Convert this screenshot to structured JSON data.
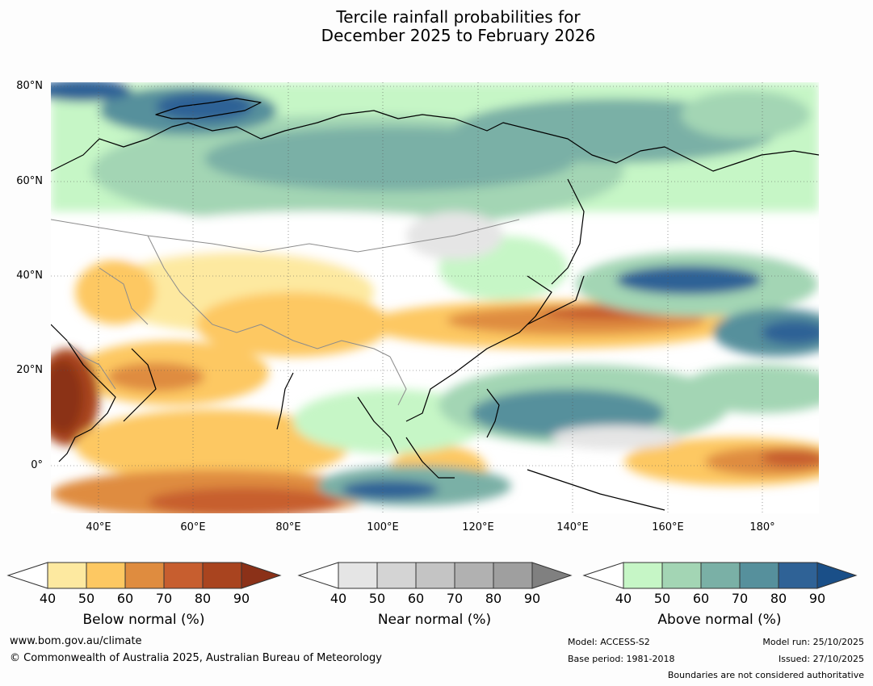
{
  "title": {
    "line1": "Tercile rainfall probabilities for",
    "line2": "December 2025 to February 2026"
  },
  "map": {
    "lat_labels": [
      "80°N",
      "60°N",
      "40°N",
      "20°N",
      "0°"
    ],
    "lon_labels": [
      "40°E",
      "60°E",
      "80°E",
      "100°E",
      "120°E",
      "140°E",
      "160°E",
      "180°"
    ],
    "extent": {
      "lon_min": 30,
      "lon_max": 192,
      "lat_min": -10,
      "lat_max": 80
    }
  },
  "legends": [
    {
      "title": "Below normal (%)",
      "ticks": [
        "40",
        "50",
        "60",
        "70",
        "80",
        "90"
      ],
      "colors": [
        "#ffffff",
        "#fde9a0",
        "#fdc862",
        "#df8c3f",
        "#c75e2f",
        "#a9441f",
        "#8b3118"
      ]
    },
    {
      "title": "Near normal (%)",
      "ticks": [
        "40",
        "50",
        "60",
        "70",
        "80",
        "90"
      ],
      "colors": [
        "#ffffff",
        "#e5e5e5",
        "#d4d4d4",
        "#c4c4c4",
        "#b1b1b1",
        "#9f9f9f",
        "#808080"
      ]
    },
    {
      "title": "Above normal (%)",
      "ticks": [
        "40",
        "50",
        "60",
        "70",
        "80",
        "90"
      ],
      "colors": [
        "#ffffff",
        "#c6f6c6",
        "#a3d5b4",
        "#7ab0a6",
        "#56909c",
        "#2f6296",
        "#1a4f88"
      ]
    }
  ],
  "footer": {
    "website": "www.bom.gov.au/climate",
    "copyright": "© Commonwealth of Australia 2025, Australian Bureau of Meteorology",
    "model": "Model: ACCESS-S2",
    "base_period": "Base period: 1981-2018",
    "model_run": "Model run: 25/10/2025",
    "issued": "Issued: 27/10/2025",
    "boundaries": "Boundaries are not considered authoritative"
  }
}
